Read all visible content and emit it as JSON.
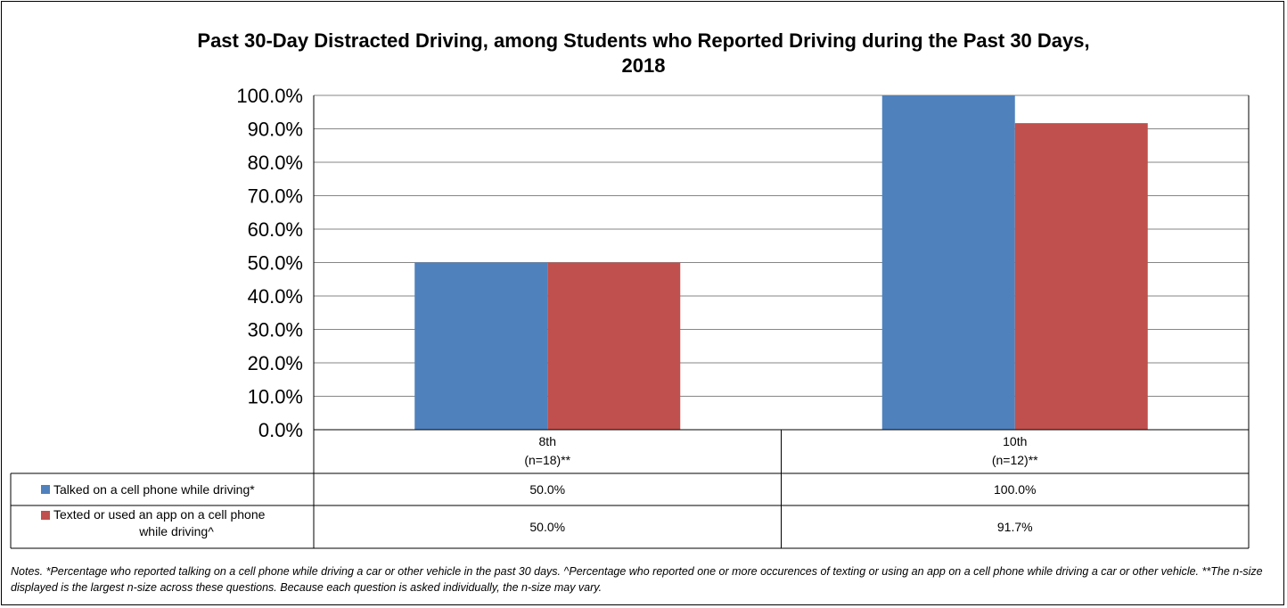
{
  "chart_data": {
    "type": "bar",
    "title": "Past 30-Day Distracted Driving, among Students who Reported Driving during the Past 30 Days,\n2018",
    "categories": [
      "8th",
      "10th"
    ],
    "category_sublabels": [
      "(n=18)**",
      "(n=12)**"
    ],
    "series": [
      {
        "name": "Talked on a cell phone while driving*",
        "values": [
          50.0,
          100.0
        ],
        "color": "#4f81bd",
        "labels": [
          "50.0%",
          "100.0%"
        ]
      },
      {
        "name": "Texted or used an app on a cell phone while driving^",
        "values": [
          50.0,
          91.7
        ],
        "color": "#c0504d",
        "labels": [
          "50.0%",
          "91.7%"
        ]
      }
    ],
    "ylim": [
      0,
      100
    ],
    "yticks": [
      "0.0%",
      "10.0%",
      "20.0%",
      "30.0%",
      "40.0%",
      "50.0%",
      "60.0%",
      "70.0%",
      "80.0%",
      "90.0%",
      "100.0%"
    ],
    "grid": true,
    "legend": "data-table"
  },
  "notes": "Notes. *Percentage who reported talking on a cell phone while driving a car or other vehicle in the past 30 days. ^Percentage who reported one or more occurences of texting or using an app on a cell phone while driving a car or other vehicle. **The n-size displayed is the largest n-size across these questions. Because each question is asked individually, the n-size may vary."
}
